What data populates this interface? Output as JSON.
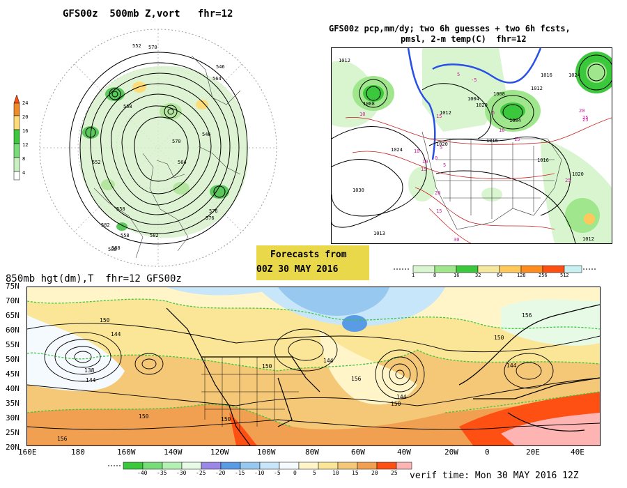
{
  "top_left": {
    "title": "GFS00z  500mb Z,vort   fhr=12",
    "colorbar": [
      "24",
      "20",
      "16",
      "12",
      "8",
      "4"
    ],
    "contour_labels": [
      "552",
      "546",
      "558",
      "570",
      "564",
      "576",
      "582",
      "588",
      "558",
      "546",
      "552",
      "558",
      "564",
      "570",
      "576",
      "582",
      "588"
    ],
    "colors": {
      "vort_light": "#b4e6a0",
      "vort_mid": "#5ac85a",
      "vort_high": "#ffdc78",
      "contour": "#000000"
    }
  },
  "top_right": {
    "title_line1": "GFS00z pcp,mm/dy; two 6h guesses + two 6h fcsts,",
    "title_line2": "pmsl, 2-m temp(C)  fhr=12",
    "pressure_labels": [
      "1012",
      "1008",
      "1024",
      "1020",
      "1030",
      "1012",
      "1008",
      "1004",
      "1016",
      "1012",
      "1024",
      "1016",
      "1020",
      "1012",
      "1016",
      "1013",
      "1004",
      "1020"
    ],
    "temp_labels": [
      "10",
      "15",
      "5",
      "-5",
      "10",
      "5",
      "0",
      "5",
      "10",
      "15",
      "20",
      "25",
      "10",
      "15",
      "5",
      "15",
      "20",
      "25",
      "30",
      "25"
    ]
  },
  "forecast_box": {
    "line1": "Forecasts from",
    "line2": "00Z 30 MAY 2016",
    "bg": "#e8d84a"
  },
  "precip_colorbar": {
    "ticks": [
      "1",
      "8",
      "16",
      "32",
      "64",
      "128",
      "256",
      "512"
    ],
    "colors": [
      "#d8f5d0",
      "#a0e68c",
      "#3cc83c",
      "#f5e6a0",
      "#ffc85a",
      "#ff8c1e",
      "#ff5014",
      "#c8f0f0"
    ]
  },
  "bottom": {
    "title": "850mb hgt(dm),T  fhr=12 GFS00z",
    "y_ticks": [
      "75N",
      "70N",
      "65N",
      "60N",
      "55N",
      "50N",
      "45N",
      "40N",
      "35N",
      "30N",
      "25N",
      "20N"
    ],
    "x_ticks": [
      "160E",
      "180",
      "160W",
      "140W",
      "120W",
      "100W",
      "80W",
      "60W",
      "40W",
      "20W",
      "0",
      "20E",
      "40E"
    ],
    "contour_labels": [
      "150",
      "144",
      "138",
      "144",
      "150",
      "150",
      "144",
      "156",
      "144",
      "150",
      "156",
      "150",
      "144",
      "156",
      "150"
    ],
    "temp_scale": [
      "-40",
      "-35",
      "-30",
      "-25",
      "-20",
      "-15",
      "-10",
      "-5",
      "0",
      "5",
      "10",
      "15",
      "20",
      "25"
    ],
    "temp_colors": [
      "#3cc83c",
      "#78dc78",
      "#b4f0b4",
      "#e6fae6",
      "#9b87e6",
      "#5a9be6",
      "#96c8f0",
      "#c8e6fa",
      "#f5faff",
      "#fff5c8",
      "#fae696",
      "#f5c878",
      "#f0a050",
      "#ff5014",
      "#ffb4b4"
    ],
    "verif": "verif time: Mon 30 MAY 2016 12Z"
  }
}
